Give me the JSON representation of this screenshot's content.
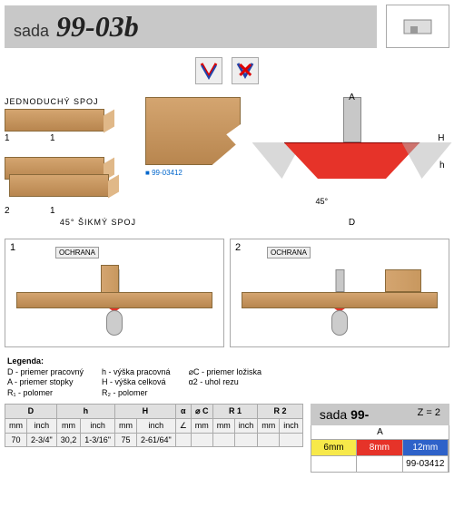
{
  "title": {
    "prefix": "sada",
    "main": "99-03b"
  },
  "labels": {
    "joint1": "JEDNODUCHÝ SPOJ",
    "joint2": "45° ŠIKMÝ SPOJ",
    "sku": "99-03412",
    "ochrana": "OCHRANA",
    "angle45": "45°"
  },
  "dims": {
    "A": "A",
    "D": "D",
    "H": "H",
    "h": "h"
  },
  "usage": [
    {
      "num": "1"
    },
    {
      "num": "2"
    }
  ],
  "legend": {
    "title": "Legenda:",
    "col1": [
      "D - priemer pracovný",
      "A - priemer stopky",
      "R₁ - polomer"
    ],
    "col2": [
      "h - výška pracovná",
      "H - výška celková",
      "R₂ - polomer"
    ],
    "col3": [
      "⌀C - priemer ložiska",
      "α2 - uhol rezu"
    ]
  },
  "table": {
    "headers": [
      "D",
      "h",
      "H",
      "α",
      "⌀ C",
      "R 1",
      "R 2"
    ],
    "subheaders": [
      "mm",
      "inch",
      "mm",
      "inch",
      "mm",
      "inch",
      "∠",
      "mm",
      "mm",
      "inch",
      "mm",
      "inch"
    ],
    "row": [
      "70",
      "2-3/4\"",
      "30,2",
      "1-3/16\"",
      "75",
      "2-61/64\"",
      "",
      "",
      "",
      "",
      "",
      ""
    ]
  },
  "sada": {
    "label": "sada",
    "num": "99-",
    "z": "Z = 2",
    "a_label": "A",
    "colors": [
      {
        "label": "6mm",
        "class": "c-yellow"
      },
      {
        "label": "8mm",
        "class": "c-red"
      },
      {
        "label": "12mm",
        "class": "c-blue"
      }
    ],
    "skus": [
      "",
      "",
      "99-03412"
    ]
  },
  "style": {
    "red": "#e63329",
    "wood": "#d4a570",
    "grey": "#c8c8c8"
  }
}
